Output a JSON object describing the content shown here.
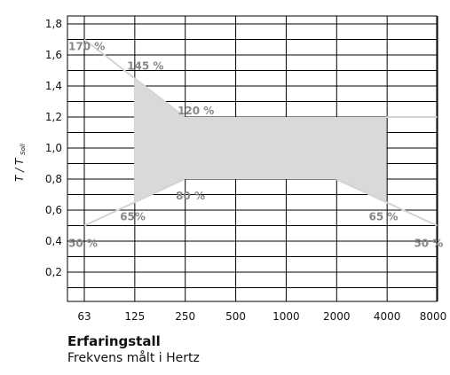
{
  "chart_data": {
    "type": "area",
    "title": "Erfaringstall",
    "subtitle": "Frekvens målt i Hertz",
    "xlabel": "Frekvens målt i Hertz",
    "ylabel_main": "T / T",
    "ylabel_sub": "Soll",
    "x_tick_labels": [
      "63",
      "125",
      "250",
      "500",
      "1000",
      "2000",
      "4000",
      "8000"
    ],
    "y_tick_labels": [
      "1,8",
      "1,6",
      "1,4",
      "1,2",
      "1,0",
      "0,8",
      "0,6",
      "0,4",
      "0,2"
    ],
    "y_tick_values": [
      1.8,
      1.6,
      1.4,
      1.2,
      1.0,
      0.8,
      0.6,
      0.4,
      0.2
    ],
    "ylim": [
      0.0,
      1.8
    ],
    "x_scale": "log2 (octave bands)",
    "grid": true,
    "band": {
      "upper": [
        {
          "x": 125,
          "y": 1.45
        },
        {
          "x": 250,
          "y": 1.2
        },
        {
          "x": 4000,
          "y": 1.2
        }
      ],
      "lower": [
        {
          "x": 125,
          "y": 0.65
        },
        {
          "x": 250,
          "y": 0.8
        },
        {
          "x": 2000,
          "y": 0.8
        },
        {
          "x": 4000,
          "y": 0.65
        }
      ],
      "color": "#d9d9d9"
    },
    "guide_lines": [
      {
        "name": "upper-left",
        "points": [
          {
            "x": 63,
            "y": 1.7
          },
          {
            "x": 250,
            "y": 1.2
          }
        ]
      },
      {
        "name": "upper-right",
        "points": [
          {
            "x": 4000,
            "y": 1.2
          },
          {
            "x": 8000,
            "y": 1.2
          }
        ]
      },
      {
        "name": "lower-left",
        "points": [
          {
            "x": 63,
            "y": 0.5
          },
          {
            "x": 250,
            "y": 0.8
          }
        ]
      },
      {
        "name": "lower-right",
        "points": [
          {
            "x": 2000,
            "y": 0.8
          },
          {
            "x": 8000,
            "y": 0.5
          }
        ]
      }
    ],
    "annotations": [
      {
        "text": "170 %",
        "x": 63,
        "y": 1.7
      },
      {
        "text": "145 %",
        "x": 125,
        "y": 1.45
      },
      {
        "text": "120 %",
        "x": 250,
        "y": 1.2
      },
      {
        "text": "80 %",
        "x": 250,
        "y": 0.8
      },
      {
        "text": "65%",
        "x": 125,
        "y": 0.65
      },
      {
        "text": "65 %",
        "x": 4000,
        "y": 0.65
      },
      {
        "text": "50 %",
        "x": 63,
        "y": 0.5
      },
      {
        "text": "50 %",
        "x": 8000,
        "y": 0.5
      }
    ],
    "colors": {
      "band": "#d9d9d9",
      "guide": "#d4d4d4",
      "annotation": "#888888",
      "grid": "#000000"
    }
  }
}
